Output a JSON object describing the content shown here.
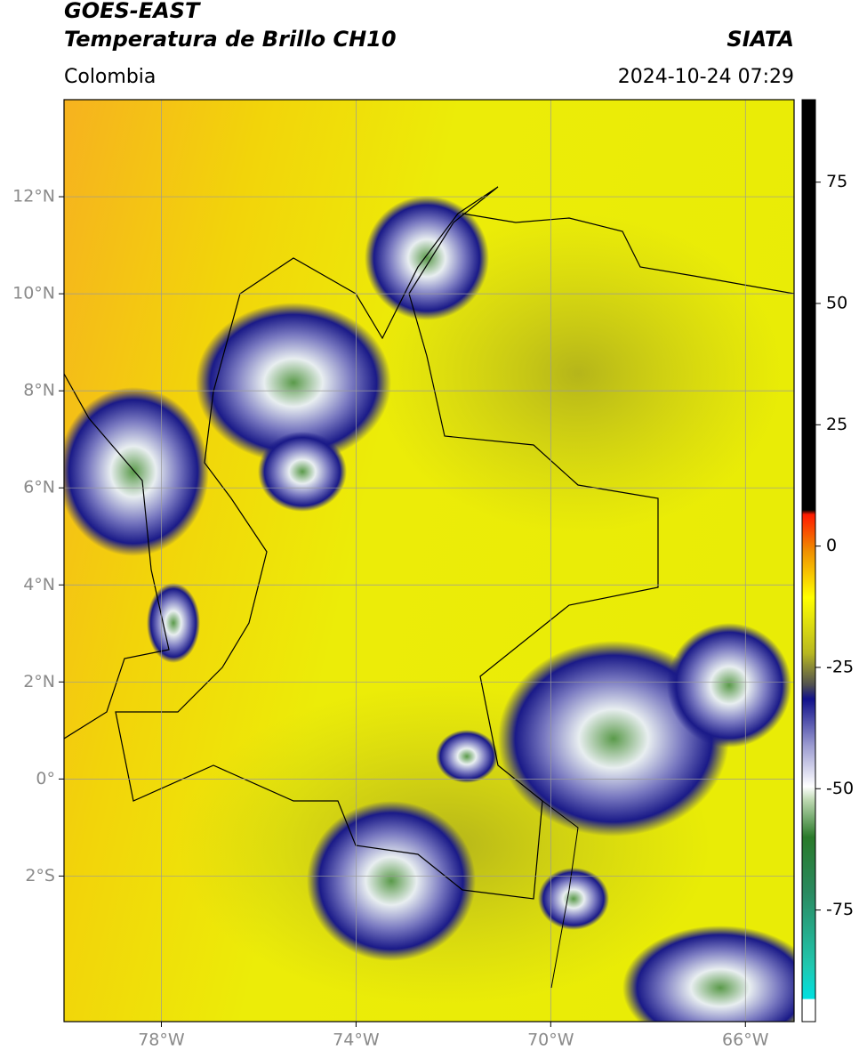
{
  "header": {
    "title": "GOES-EAST",
    "subtitle": "Temperatura de Brillo CH10",
    "region": "Colombia",
    "source": "SIATA",
    "datetime": "2024-10-24 07:29"
  },
  "map": {
    "xlim": [
      -80,
      -65
    ],
    "ylim": [
      -5,
      14
    ],
    "xticks": [
      {
        "value": -78,
        "label": "78°W"
      },
      {
        "value": -74,
        "label": "74°W"
      },
      {
        "value": -70,
        "label": "70°W"
      },
      {
        "value": -66,
        "label": "66°W"
      }
    ],
    "yticks": [
      {
        "value": 12,
        "label": "12°N"
      },
      {
        "value": 10,
        "label": "10°N"
      },
      {
        "value": 8,
        "label": "8°N"
      },
      {
        "value": 6,
        "label": "6°N"
      },
      {
        "value": 4,
        "label": "4°N"
      },
      {
        "value": 2,
        "label": "2°N"
      },
      {
        "value": 0,
        "label": "0°"
      },
      {
        "value": -2,
        "label": "2°S"
      }
    ],
    "grid": true
  },
  "colorbar": {
    "ylim": [
      -98,
      92
    ],
    "ticks": [
      75,
      50,
      25,
      0,
      -25,
      -50,
      -75
    ]
  }
}
